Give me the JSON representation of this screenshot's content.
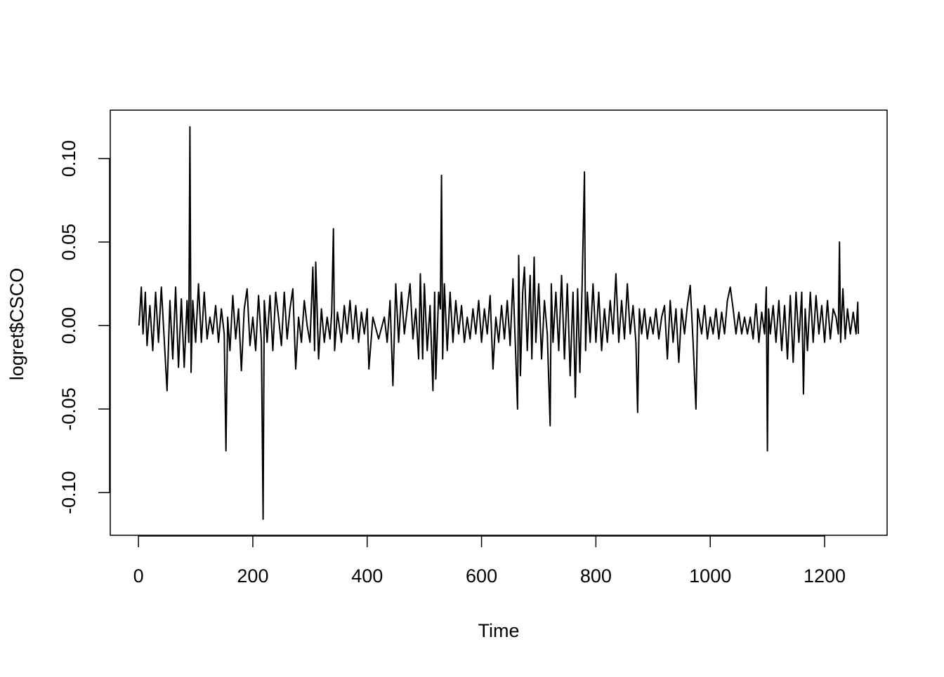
{
  "chart_data": {
    "type": "line",
    "x_label": "Time",
    "y_label": "logret$CSCO",
    "xlim": [
      -49.3,
      1309.3
    ],
    "ylim": [
      -0.1256,
      0.129
    ],
    "xticks": [
      0,
      200,
      400,
      600,
      800,
      1000,
      1200
    ],
    "yticks": [
      {
        "value": -0.1,
        "label": "-0.10"
      },
      {
        "value": -0.05,
        "label": "-0.05"
      },
      {
        "value": 0,
        "label": "0.00"
      },
      {
        "value": 0.05,
        "label": "0.05"
      },
      {
        "value": 0.1,
        "label": "0.10"
      }
    ],
    "color": "#000000",
    "x": [
      1,
      5,
      8,
      12,
      15,
      20,
      25,
      30,
      35,
      40,
      45,
      50,
      55,
      60,
      65,
      70,
      75,
      80,
      85,
      88,
      90,
      92,
      95,
      100,
      105,
      110,
      115,
      120,
      125,
      130,
      135,
      140,
      145,
      150,
      153,
      156,
      160,
      165,
      170,
      175,
      180,
      185,
      190,
      195,
      200,
      205,
      210,
      215,
      218,
      220,
      225,
      230,
      235,
      240,
      245,
      250,
      255,
      260,
      265,
      270,
      275,
      280,
      285,
      290,
      295,
      300,
      305,
      308,
      310,
      315,
      320,
      325,
      330,
      335,
      338,
      341,
      343,
      348,
      355,
      360,
      365,
      370,
      375,
      380,
      385,
      390,
      395,
      400,
      403,
      410,
      420,
      430,
      435,
      440,
      445,
      450,
      455,
      460,
      465,
      470,
      475,
      480,
      485,
      490,
      493,
      497,
      500,
      505,
      510,
      515,
      518,
      520,
      525,
      528,
      530,
      532,
      535,
      540,
      545,
      550,
      555,
      560,
      565,
      570,
      575,
      580,
      585,
      590,
      595,
      600,
      605,
      610,
      615,
      620,
      625,
      630,
      635,
      640,
      645,
      650,
      655,
      660,
      663,
      665,
      668,
      672,
      675,
      680,
      685,
      688,
      692,
      695,
      700,
      705,
      710,
      715,
      720,
      722,
      725,
      730,
      735,
      740,
      745,
      750,
      755,
      760,
      764,
      768,
      772,
      776,
      780,
      782,
      785,
      790,
      795,
      800,
      805,
      810,
      815,
      820,
      825,
      830,
      835,
      840,
      845,
      850,
      855,
      860,
      865,
      870,
      873,
      876,
      880,
      885,
      890,
      895,
      900,
      905,
      910,
      915,
      920,
      925,
      930,
      935,
      940,
      945,
      950,
      955,
      960,
      965,
      970,
      975,
      978,
      985,
      990,
      995,
      1000,
      1005,
      1010,
      1015,
      1020,
      1025,
      1030,
      1035,
      1040,
      1045,
      1050,
      1055,
      1060,
      1065,
      1070,
      1075,
      1080,
      1085,
      1090,
      1095,
      1098,
      1100,
      1102,
      1105,
      1110,
      1115,
      1120,
      1125,
      1130,
      1135,
      1140,
      1145,
      1150,
      1155,
      1160,
      1163,
      1166,
      1170,
      1175,
      1180,
      1185,
      1190,
      1195,
      1200,
      1205,
      1210,
      1215,
      1220,
      1224,
      1226,
      1228,
      1232,
      1236,
      1240,
      1245,
      1250,
      1255,
      1258,
      1259
    ],
    "values": [
      0,
      0.023,
      -0.005,
      0.02,
      -0.012,
      0.012,
      -0.015,
      0.02,
      -0.01,
      0.023,
      -0.008,
      -0.039,
      0.015,
      -0.02,
      0.023,
      -0.025,
      0.016,
      -0.025,
      0.015,
      -0.01,
      0.119,
      -0.028,
      0.015,
      -0.01,
      0.025,
      -0.01,
      0.02,
      -0.008,
      0.005,
      -0.005,
      0.012,
      -0.01,
      0.01,
      -0.005,
      -0.075,
      0.005,
      -0.015,
      0.018,
      -0.008,
      0.01,
      -0.027,
      0.01,
      0.022,
      -0.012,
      0.005,
      -0.015,
      0.018,
      -0.01,
      -0.116,
      0.015,
      -0.01,
      0.018,
      -0.015,
      0.02,
      0.005,
      -0.012,
      0.02,
      -0.008,
      0.01,
      0.022,
      -0.026,
      0.005,
      -0.01,
      0.015,
      0,
      -0.01,
      0.035,
      -0.015,
      0.038,
      -0.02,
      0.01,
      -0.01,
      0.005,
      -0.008,
      0.008,
      0.058,
      -0.015,
      0.008,
      -0.01,
      0.012,
      -0.005,
      0.015,
      -0.008,
      0.012,
      -0.01,
      0.008,
      -0.005,
      0.01,
      -0.026,
      0.005,
      -0.008,
      0.005,
      -0.01,
      0.015,
      -0.036,
      0.025,
      -0.01,
      0.02,
      -0.005,
      0.01,
      0.025,
      -0.008,
      0.01,
      -0.02,
      0.031,
      -0.02,
      0.025,
      -0.015,
      0.012,
      -0.039,
      0.02,
      -0.032,
      0.02,
      0.01,
      0.09,
      -0.02,
      0.025,
      -0.015,
      0.02,
      -0.01,
      0.015,
      -0.005,
      0.012,
      -0.01,
      0.005,
      -0.008,
      0.01,
      -0.005,
      0.015,
      -0.01,
      0.01,
      -0.005,
      0.018,
      -0.026,
      0.005,
      -0.01,
      0.012,
      -0.008,
      0.015,
      -0.012,
      0.028,
      -0.02,
      -0.05,
      0.042,
      -0.03,
      0.02,
      0.035,
      -0.015,
      0.03,
      -0.02,
      0.041,
      -0.01,
      0.025,
      -0.02,
      0.015,
      -0.005,
      -0.06,
      0.025,
      -0.01,
      0.02,
      -0.015,
      0.03,
      -0.02,
      0.025,
      -0.03,
      0.02,
      -0.043,
      0.022,
      -0.028,
      0.025,
      0.092,
      -0.015,
      0.02,
      -0.01,
      0.025,
      -0.01,
      0.02,
      -0.015,
      0.01,
      -0.01,
      0.015,
      -0.005,
      0.031,
      -0.01,
      0.015,
      -0.008,
      0.025,
      -0.005,
      0.012,
      -0.01,
      -0.052,
      0.01,
      -0.005,
      0.01,
      -0.008,
      0.005,
      -0.005,
      0.01,
      -0.008,
      0.005,
      0.012,
      -0.02,
      0.015,
      -0.01,
      0.01,
      -0.022,
      0.01,
      -0.005,
      0.012,
      0.024,
      -0.01,
      -0.05,
      0.01,
      -0.005,
      0.012,
      -0.008,
      0.005,
      -0.005,
      0.01,
      -0.008,
      0.008,
      -0.005,
      0.015,
      0.023,
      0.01,
      -0.005,
      0.008,
      -0.005,
      0.005,
      -0.005,
      0.005,
      -0.008,
      0.013,
      -0.01,
      0.008,
      -0.005,
      0.023,
      -0.075,
      0.01,
      -0.005,
      0.012,
      -0.01,
      0.015,
      -0.015,
      0.012,
      -0.02,
      0.018,
      -0.022,
      0.02,
      -0.01,
      0.02,
      -0.041,
      0.01,
      -0.015,
      0.02,
      -0.01,
      0.018,
      -0.005,
      0.012,
      -0.01,
      0.015,
      -0.008,
      0.01,
      0.005,
      -0.005,
      0.05,
      -0.01,
      0.022,
      -0.008,
      0.01,
      -0.005,
      0.008,
      -0.005,
      0.014,
      -0.005
    ]
  }
}
